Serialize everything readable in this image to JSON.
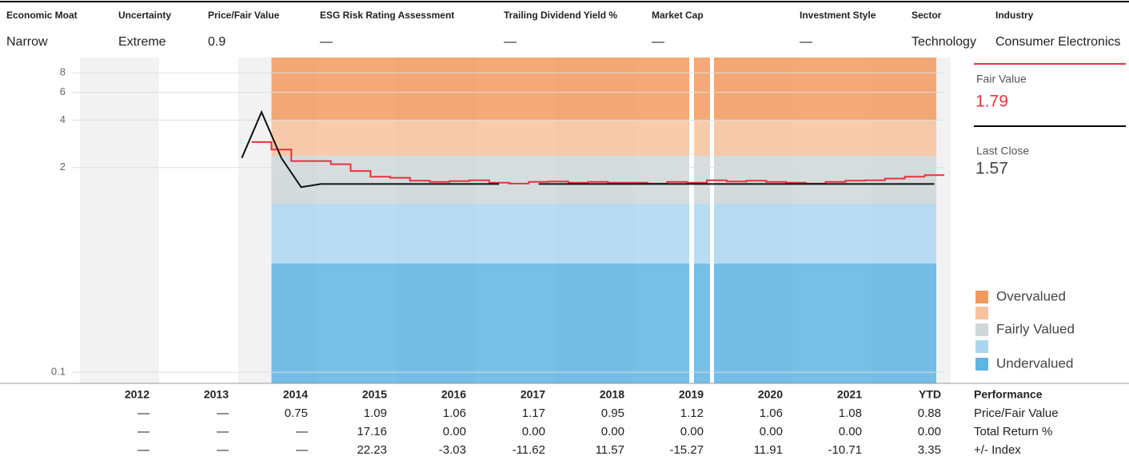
{
  "header": [
    {
      "label": "Economic Moat",
      "value": "Narrow"
    },
    {
      "label": "Uncertainty",
      "value": "Extreme"
    },
    {
      "label": "Price/Fair Value",
      "value": "0.9"
    },
    {
      "label": "ESG Risk Rating Assessment",
      "value": "—"
    },
    {
      "label": "Trailing Dividend Yield %",
      "value": "—"
    },
    {
      "label": "Market Cap",
      "value": "—"
    },
    {
      "label": "Investment Style",
      "value": "—"
    },
    {
      "label": "Sector",
      "value": "Technology"
    },
    {
      "label": "Industry",
      "value": "Consumer Electronics"
    }
  ],
  "chart_data": {
    "type": "line",
    "x": [
      "2012",
      null,
      null,
      null,
      "2013",
      null,
      null,
      null,
      "2014",
      null,
      null,
      null,
      "2015",
      null,
      null,
      null,
      "2016",
      null,
      null,
      null,
      "2017",
      null,
      null,
      null,
      "2018",
      null,
      null,
      null,
      "2019",
      null,
      null,
      null,
      "2020",
      null,
      null,
      null,
      "2021",
      null,
      null,
      null,
      "YTD",
      null,
      null,
      null
    ],
    "log_scale": true,
    "ylim": [
      0.085,
      10
    ],
    "yticks": [
      8,
      6,
      4,
      2,
      0.1
    ],
    "grid": true,
    "series": [
      {
        "name": "Fair Value",
        "color": "#e8323c",
        "values": [
          null,
          null,
          null,
          null,
          null,
          null,
          null,
          null,
          null,
          2.9,
          2.6,
          2.2,
          2.2,
          2.1,
          1.9,
          1.75,
          1.72,
          1.65,
          1.62,
          1.64,
          1.66,
          1.6,
          1.58,
          1.62,
          1.63,
          1.6,
          1.62,
          1.6,
          1.6,
          1.58,
          1.62,
          1.6,
          1.66,
          1.63,
          1.65,
          1.62,
          1.6,
          1.58,
          1.62,
          1.65,
          1.66,
          1.7,
          1.75,
          1.79
        ]
      },
      {
        "name": "Last Close",
        "color": "#111111",
        "values": [
          null,
          null,
          null,
          null,
          null,
          null,
          null,
          null,
          2.3,
          4.5,
          2.3,
          1.5,
          1.57,
          1.57,
          1.57,
          1.57,
          1.57,
          1.57,
          1.57,
          1.57,
          1.57,
          1.57,
          null,
          1.57,
          1.57,
          1.57,
          1.57,
          1.57,
          1.57,
          1.57,
          1.57,
          1.57,
          1.57,
          1.57,
          1.57,
          1.57,
          1.57,
          1.57,
          1.57,
          1.57,
          1.57,
          1.57,
          1.57,
          1.57
        ]
      }
    ],
    "fair_value": {
      "label": "Fair Value",
      "value": "1.79"
    },
    "last_close": {
      "label": "Last Close",
      "value": "1.57"
    },
    "legend": [
      {
        "name": "Overvalued",
        "color": "#f29a5e"
      },
      {
        "color": "#f7c29d"
      },
      {
        "name": "Fairly Valued",
        "color": "#cfd7d9"
      },
      {
        "color": "#acd6ef"
      },
      {
        "name": "Undervalued",
        "color": "#5eb4e3"
      }
    ]
  },
  "table": {
    "title": "Performance",
    "rows": [
      {
        "label": "Price/Fair Value",
        "values": [
          "—",
          "—",
          "0.75",
          "1.09",
          "1.06",
          "1.17",
          "0.95",
          "1.12",
          "1.06",
          "1.08",
          "0.88"
        ]
      },
      {
        "label": "Total Return %",
        "values": [
          "—",
          "—",
          "—",
          "17.16",
          "0.00",
          "0.00",
          "0.00",
          "0.00",
          "0.00",
          "0.00",
          "0.00"
        ]
      },
      {
        "label": "+/- Index",
        "values": [
          "—",
          "—",
          "—",
          "22.23",
          "-3.03",
          "-11.62",
          "11.57",
          "-15.27",
          "11.91",
          "-10.71",
          "3.35"
        ]
      }
    ]
  }
}
